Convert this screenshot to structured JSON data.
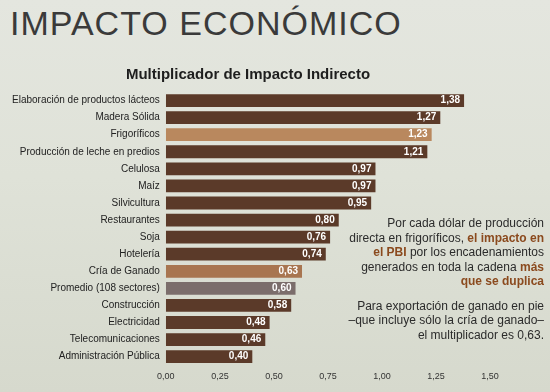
{
  "header": "IMPACTO ECONÓMICO",
  "chart_data": {
    "type": "bar",
    "orientation": "horizontal",
    "title": "Multiplicador de Impacto Indirecto",
    "categories": [
      "Elaboración de productos lácteos",
      "Madera Sólida",
      "Frigoríficos",
      "Producción de leche en predios",
      "Celulosa",
      "Maíz",
      "Silvicultura",
      "Restaurantes",
      "Soja",
      "Hotelería",
      "Cría de Ganado",
      "Promedio (108 sectores)",
      "Construcción",
      "Electricidad",
      "Telecomunicaciones",
      "Administración Pública"
    ],
    "values": [
      1.38,
      1.27,
      1.23,
      1.21,
      0.97,
      0.97,
      0.95,
      0.8,
      0.76,
      0.74,
      0.63,
      0.6,
      0.58,
      0.48,
      0.46,
      0.4
    ],
    "value_labels": [
      "1,38",
      "1,27",
      "1,23",
      "1,21",
      "0,97",
      "0,97",
      "0,95",
      "0,80",
      "0,76",
      "0,74",
      "0,63",
      "0,60",
      "0,58",
      "0,48",
      "0,46",
      "0,40"
    ],
    "colors": [
      "#5b3a29",
      "#5b3a29",
      "#b9885e",
      "#5b3a29",
      "#5b3a29",
      "#5b3a29",
      "#5b3a29",
      "#5b3a29",
      "#5b3a29",
      "#5b3a29",
      "#a87550",
      "#7b6d6b",
      "#5b3a29",
      "#5b3a29",
      "#5b3a29",
      "#5b3a29"
    ],
    "xlim": [
      0,
      1.5
    ],
    "xticks": [
      {
        "value": 0,
        "label": "0,00"
      },
      {
        "value": 0.25,
        "label": "0,25"
      },
      {
        "value": 0.5,
        "label": "0,50"
      },
      {
        "value": 0.75,
        "label": "0,75"
      },
      {
        "value": 1,
        "label": "1,00"
      },
      {
        "value": 1.25,
        "label": "1,25"
      },
      {
        "value": 1.5,
        "label": "1,50"
      }
    ],
    "grid": false,
    "data_labels": true,
    "annotations": [
      [
        {
          "text": "Por cada dólar de producción directa en frigoríficos, "
        },
        {
          "text": "el impacto en el PBI",
          "emphasis": true
        },
        {
          "text": " por los encadenamientos generados en toda la cadena "
        },
        {
          "text": "más que se duplica",
          "emphasis": true
        }
      ],
      [
        {
          "text": "Para exportación de ganado en pie –que incluye sólo la cría de ganado– el multiplicador es 0,63."
        }
      ]
    ]
  }
}
